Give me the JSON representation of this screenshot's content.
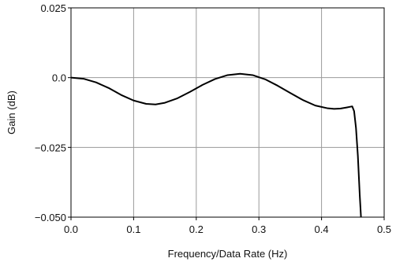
{
  "chart_data": {
    "type": "line",
    "xlabel": "Frequency/Data Rate (Hz)",
    "ylabel": "Gain (dB)",
    "xlim": [
      0.0,
      0.5
    ],
    "ylim": [
      -0.05,
      0.025
    ],
    "grid": true,
    "x_ticks": [
      0.0,
      0.1,
      0.2,
      0.3,
      0.4,
      0.5
    ],
    "x_tick_labels": [
      "0.0",
      "0.1",
      "0.2",
      "0.3",
      "0.4",
      "0.5"
    ],
    "y_ticks": [
      0.025,
      0.0,
      -0.025,
      -0.05
    ],
    "y_tick_labels": [
      "0.025",
      "0.0",
      "−0.025",
      "−0.050"
    ],
    "series": [
      {
        "color": "#000000",
        "points": [
          [
            0.0,
            0.0
          ],
          [
            0.02,
            -0.0004
          ],
          [
            0.04,
            -0.0017
          ],
          [
            0.06,
            -0.0037
          ],
          [
            0.08,
            -0.0062
          ],
          [
            0.1,
            -0.0082
          ],
          [
            0.12,
            -0.0094
          ],
          [
            0.135,
            -0.0096
          ],
          [
            0.15,
            -0.009
          ],
          [
            0.17,
            -0.0074
          ],
          [
            0.19,
            -0.0051
          ],
          [
            0.21,
            -0.0026
          ],
          [
            0.23,
            -0.0005
          ],
          [
            0.25,
            0.0009
          ],
          [
            0.27,
            0.0014
          ],
          [
            0.29,
            0.0009
          ],
          [
            0.31,
            -0.0006
          ],
          [
            0.33,
            -0.0029
          ],
          [
            0.35,
            -0.0055
          ],
          [
            0.37,
            -0.008
          ],
          [
            0.39,
            -0.01
          ],
          [
            0.41,
            -0.011
          ],
          [
            0.42,
            -0.0112
          ],
          [
            0.43,
            -0.0111
          ],
          [
            0.44,
            -0.0107
          ],
          [
            0.449,
            -0.0103
          ],
          [
            0.452,
            -0.012
          ],
          [
            0.455,
            -0.018
          ],
          [
            0.458,
            -0.028
          ],
          [
            0.461,
            -0.042
          ],
          [
            0.463,
            -0.05
          ]
        ]
      }
    ]
  }
}
